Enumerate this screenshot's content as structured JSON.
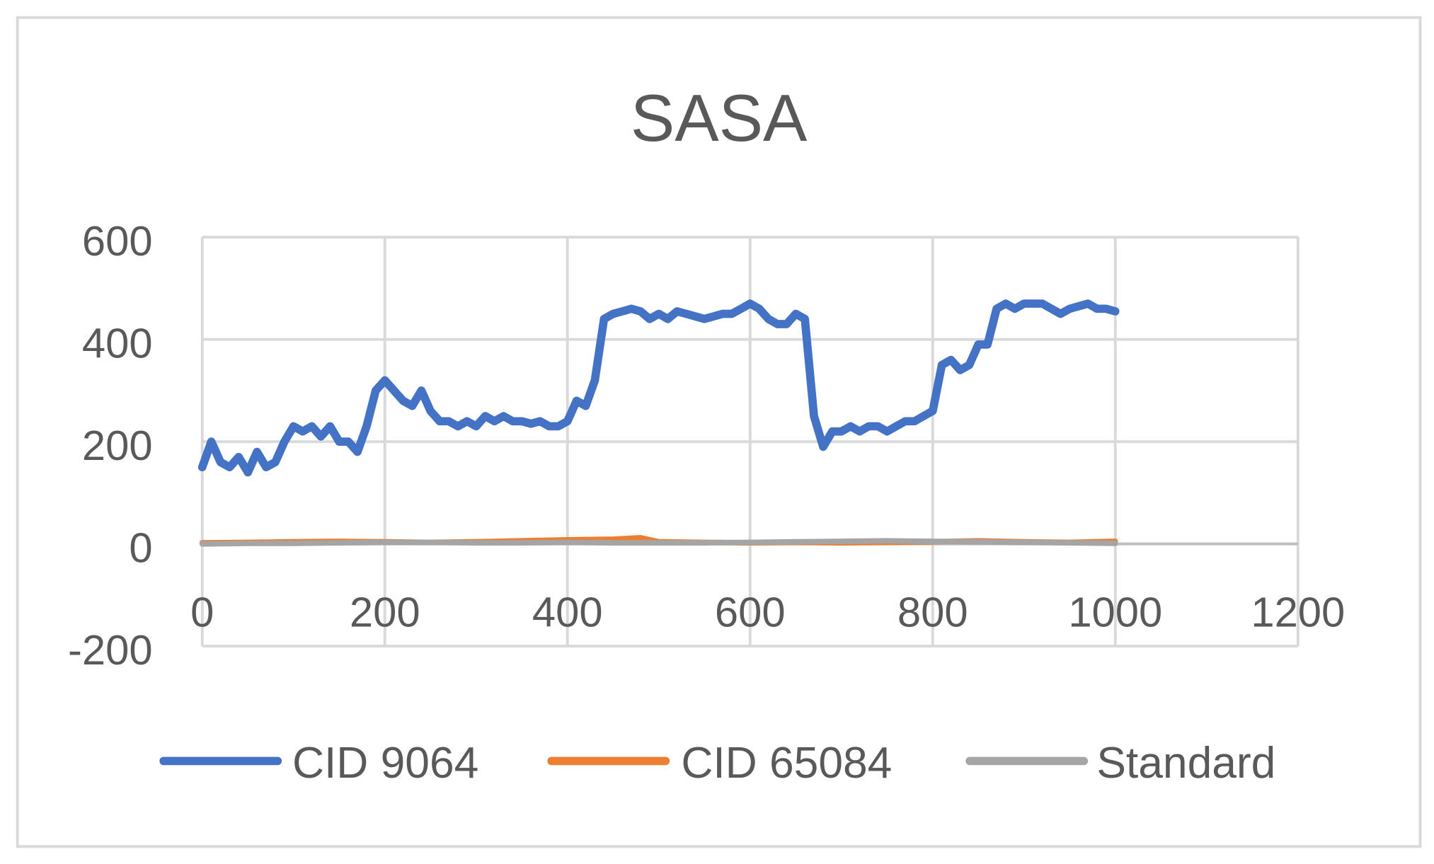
{
  "chart_data": {
    "type": "line",
    "title": "SASA",
    "xlabel": "",
    "ylabel": "",
    "xlim": [
      0,
      1200
    ],
    "ylim": [
      -200,
      600
    ],
    "x_ticks": [
      "0",
      "200",
      "400",
      "600",
      "800",
      "1000",
      "1200"
    ],
    "y_ticks": [
      "-200",
      "0",
      "200",
      "400",
      "600"
    ],
    "grid": true,
    "legend": "bottom",
    "series": [
      {
        "name": "CID 9064",
        "color": "#4472C4",
        "x": [
          0,
          10,
          20,
          30,
          40,
          50,
          60,
          70,
          80,
          90,
          100,
          110,
          120,
          130,
          140,
          150,
          160,
          170,
          180,
          190,
          200,
          210,
          220,
          230,
          240,
          250,
          260,
          270,
          280,
          290,
          300,
          310,
          320,
          330,
          340,
          350,
          360,
          370,
          380,
          390,
          400,
          410,
          420,
          430,
          440,
          450,
          460,
          470,
          480,
          490,
          500,
          510,
          520,
          530,
          540,
          550,
          560,
          570,
          580,
          590,
          600,
          610,
          620,
          630,
          640,
          650,
          660,
          670,
          680,
          690,
          700,
          710,
          720,
          730,
          740,
          750,
          760,
          770,
          780,
          790,
          800,
          810,
          820,
          830,
          840,
          850,
          860,
          870,
          880,
          890,
          900,
          910,
          920,
          930,
          940,
          950,
          960,
          970,
          980,
          990,
          1000
        ],
        "y": [
          150,
          200,
          160,
          150,
          170,
          140,
          180,
          150,
          160,
          200,
          230,
          220,
          230,
          210,
          230,
          200,
          200,
          180,
          230,
          300,
          320,
          300,
          280,
          270,
          300,
          260,
          240,
          240,
          230,
          240,
          230,
          250,
          240,
          250,
          240,
          240,
          235,
          240,
          230,
          230,
          240,
          280,
          270,
          320,
          440,
          450,
          455,
          460,
          455,
          440,
          450,
          440,
          455,
          450,
          445,
          440,
          445,
          450,
          450,
          460,
          470,
          460,
          440,
          430,
          430,
          450,
          440,
          250,
          190,
          220,
          220,
          230,
          220,
          230,
          230,
          220,
          230,
          240,
          240,
          250,
          260,
          350,
          360,
          340,
          350,
          390,
          390,
          460,
          470,
          460,
          470,
          470,
          470,
          460,
          450,
          460,
          465,
          470,
          460,
          460,
          455
        ]
      },
      {
        "name": "CID 65084",
        "color": "#ED7D31",
        "x": [
          0,
          50,
          100,
          150,
          200,
          250,
          300,
          350,
          400,
          450,
          480,
          500,
          550,
          600,
          650,
          700,
          750,
          800,
          850,
          900,
          950,
          1000
        ],
        "y": [
          2,
          3,
          4,
          5,
          4,
          3,
          4,
          6,
          8,
          9,
          12,
          4,
          3,
          2,
          3,
          2,
          3,
          4,
          6,
          4,
          3,
          5
        ]
      },
      {
        "name": "Standard",
        "color": "#A5A5A5",
        "x": [
          0,
          50,
          100,
          150,
          200,
          250,
          300,
          350,
          400,
          450,
          500,
          550,
          600,
          650,
          700,
          750,
          800,
          850,
          900,
          950,
          1000
        ],
        "y": [
          0,
          1,
          1,
          2,
          3,
          3,
          2,
          2,
          3,
          2,
          2,
          2,
          3,
          4,
          5,
          6,
          5,
          4,
          3,
          2,
          1
        ]
      }
    ]
  }
}
